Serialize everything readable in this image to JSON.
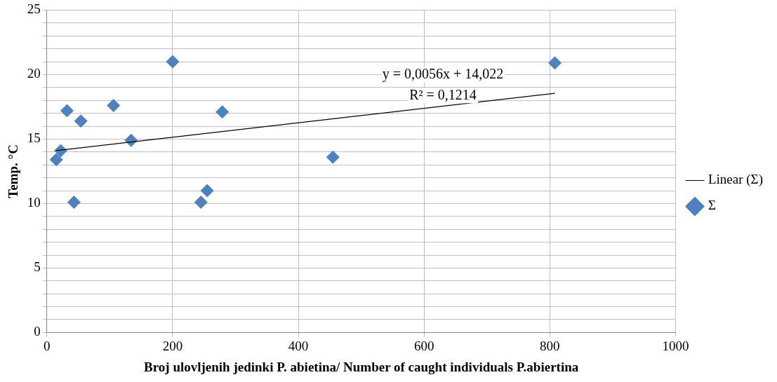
{
  "chart_data": {
    "type": "scatter",
    "xlabel": "Broj ulovljenih jedinki P. abietina/ Number of caught individuals P.abiertina",
    "ylabel": "Temp. °C",
    "series": [
      {
        "name": "Σ",
        "type": "scatter",
        "color": "#4f81bd",
        "marker": "diamond",
        "x": [
          15,
          22,
          32,
          43,
          54,
          106,
          134,
          200,
          245,
          255,
          279,
          455,
          808
        ],
        "values": [
          13.4,
          14.1,
          17.2,
          10.1,
          16.4,
          17.6,
          14.9,
          21.0,
          10.1,
          11.0,
          17.1,
          13.6,
          20.9
        ]
      },
      {
        "name": "Linear (Σ)",
        "type": "line",
        "color": "#000000",
        "marker": "none",
        "line_style": "solid",
        "x": [
          15,
          808
        ],
        "values": [
          14.1,
          18.55
        ]
      }
    ],
    "annotations": [
      "y = 0,0056x + 14,022",
      "R² = 0,1214"
    ],
    "xlim": [
      0,
      1000
    ],
    "xticks": [
      0,
      200,
      400,
      600,
      800,
      1000
    ],
    "ylim": [
      0,
      25
    ],
    "yticks": [
      0,
      {
        "value": 1,
        "label": null
      },
      {
        "value": 2,
        "label": null
      },
      {
        "value": 3,
        "label": null
      },
      {
        "value": 4,
        "label": null
      },
      5,
      {
        "value": 6,
        "label": null
      },
      {
        "value": 7,
        "label": null
      },
      {
        "value": 8,
        "label": null
      },
      {
        "value": 9,
        "label": null
      },
      10,
      {
        "value": 11,
        "label": null
      },
      {
        "value": 12,
        "label": null
      },
      {
        "value": 13,
        "label": null
      },
      {
        "value": 14,
        "label": null
      },
      15,
      {
        "value": 16,
        "label": null
      },
      {
        "value": 17,
        "label": null
      },
      {
        "value": 18,
        "label": null
      },
      {
        "value": 19,
        "label": null
      },
      20,
      {
        "value": 21,
        "label": null
      },
      {
        "value": 22,
        "label": null
      },
      {
        "value": 23,
        "label": null
      },
      {
        "value": 24,
        "label": null
      },
      25
    ],
    "grid": true,
    "legend": "right"
  }
}
